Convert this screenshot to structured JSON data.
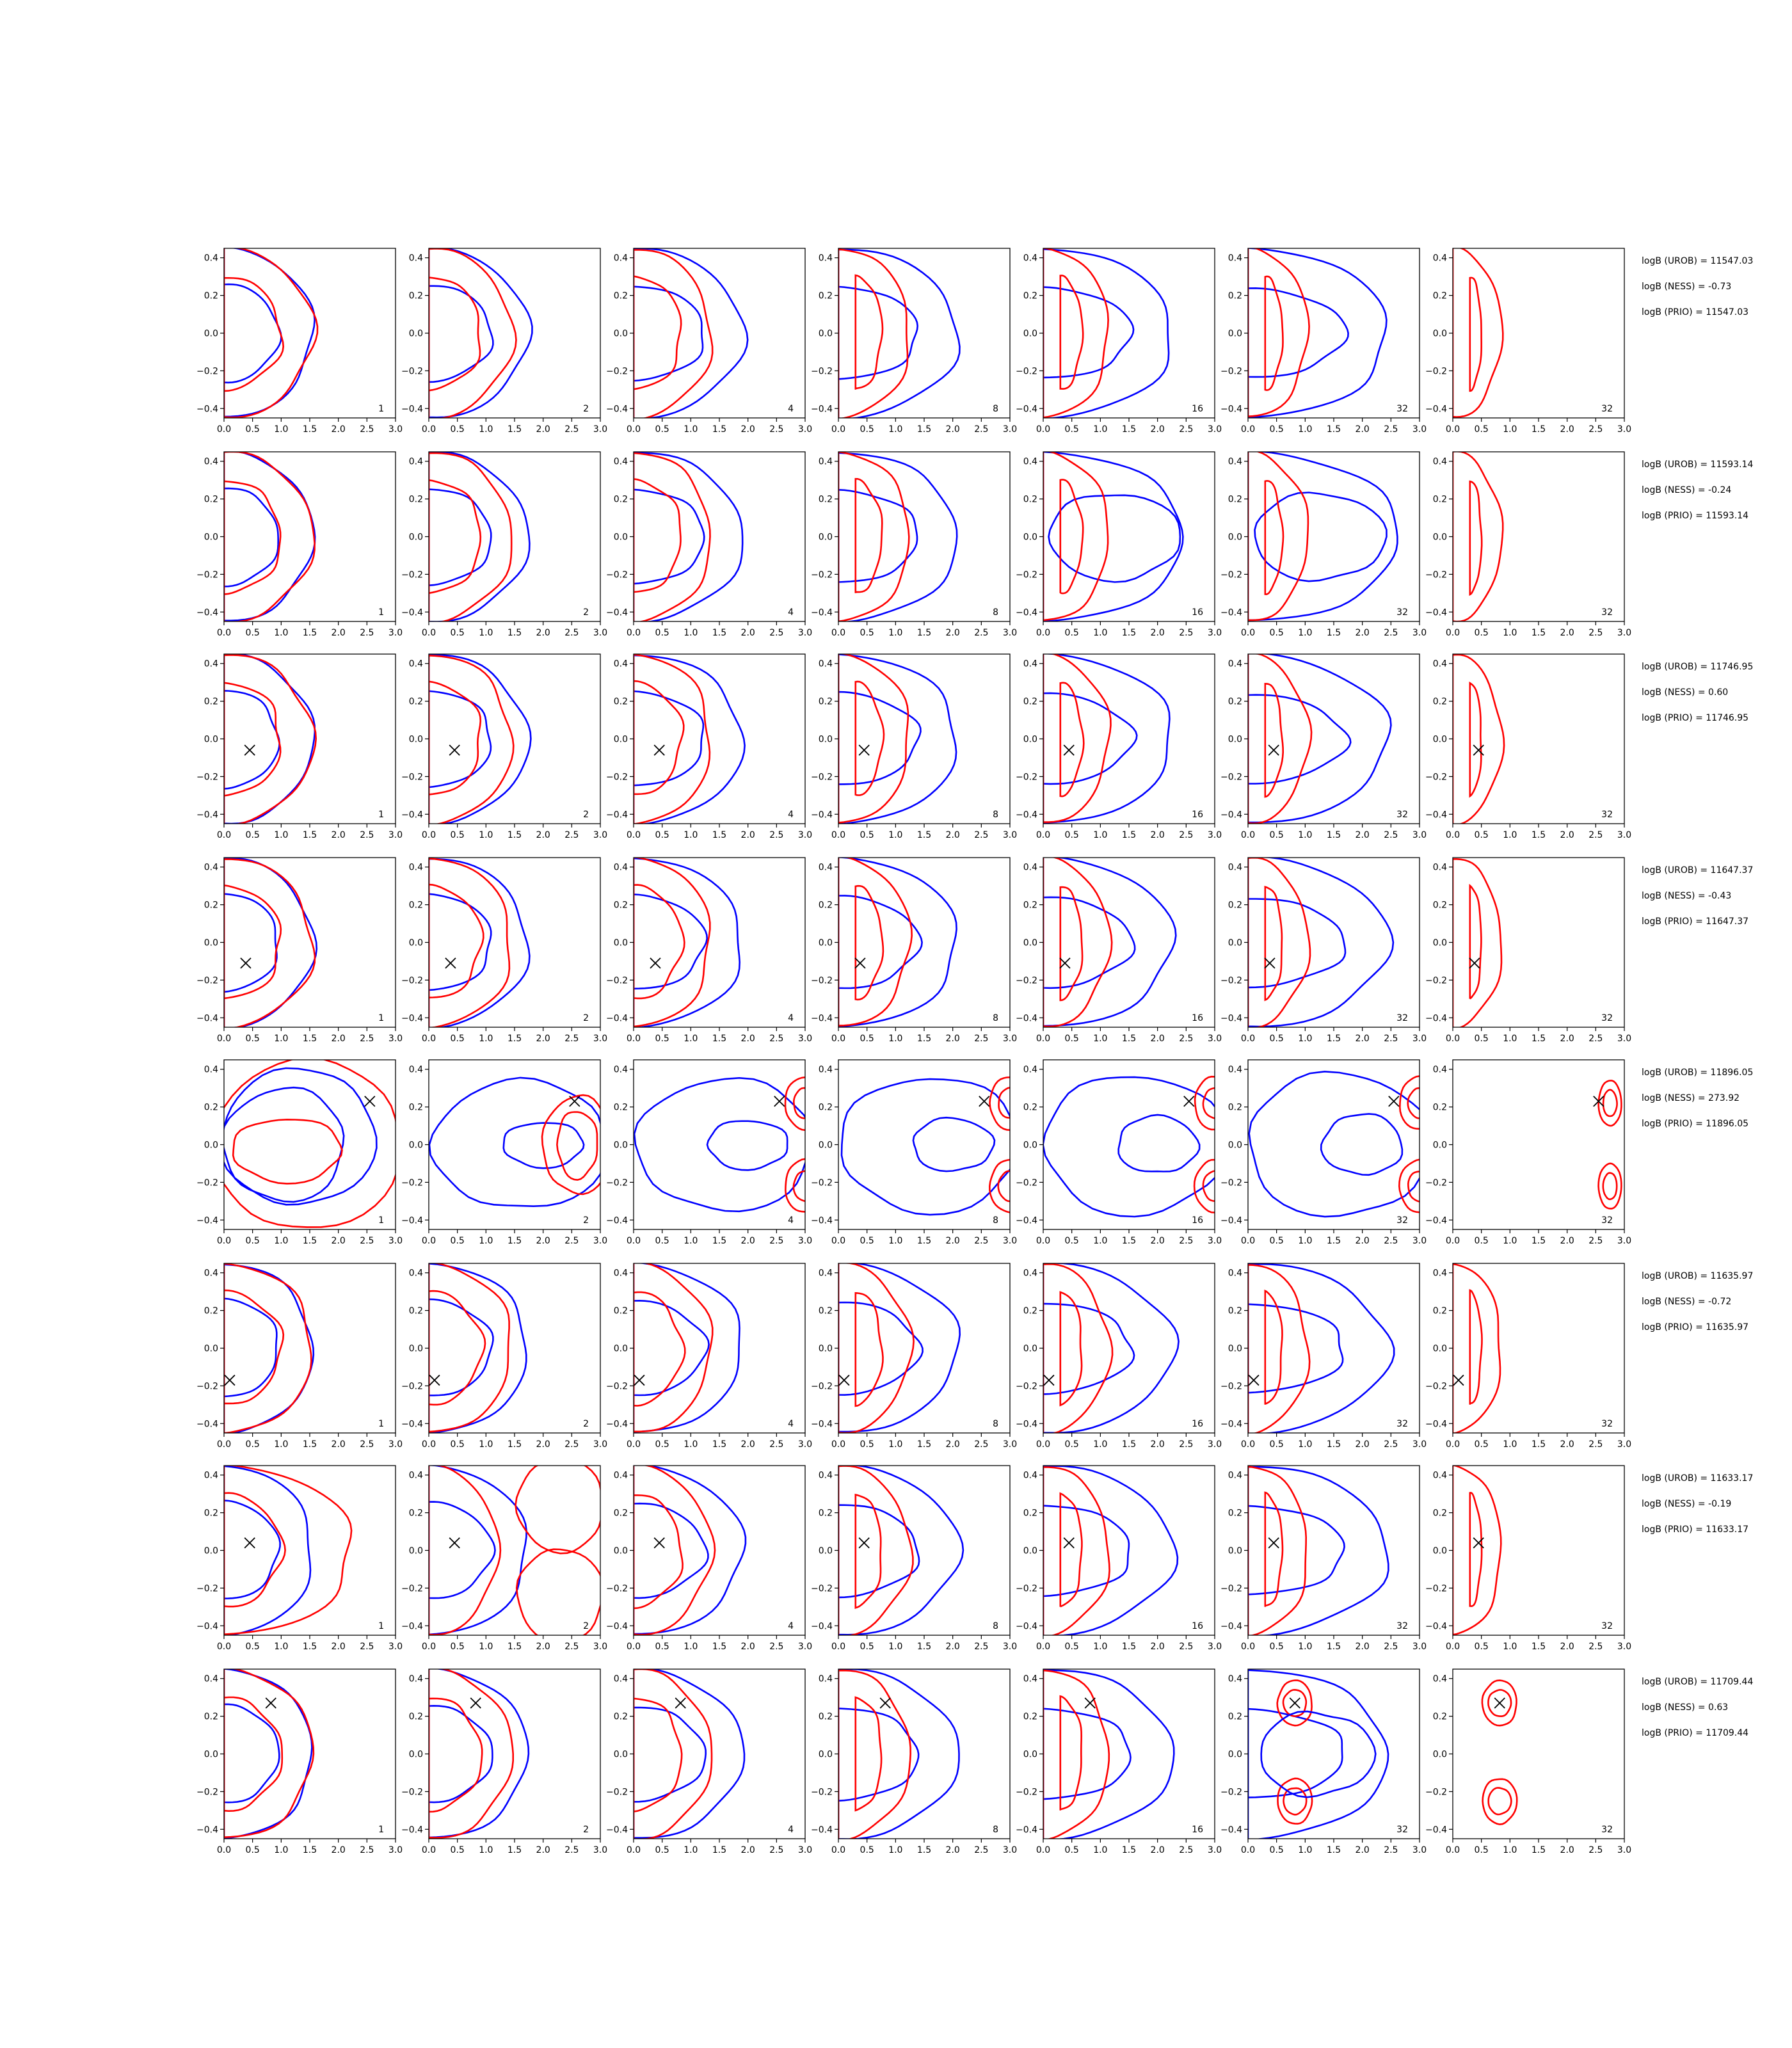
{
  "chart_data": {
    "type": "contour-grid",
    "xlim": [
      0.0,
      3.0
    ],
    "ylim": [
      -0.45,
      0.45
    ],
    "xticks": [
      "0.0",
      "0.5",
      "1.0",
      "1.5",
      "2.0",
      "2.5",
      "3.0"
    ],
    "yticks": [
      "0.4",
      "0.2",
      "0.0",
      "−0.2",
      "−0.4"
    ],
    "column_labels": [
      "1",
      "2",
      "4",
      "8",
      "16",
      "32",
      "32"
    ],
    "colors": {
      "blue": "#0000ff",
      "red": "#ff0000",
      "marker": "#000000"
    },
    "rows": [
      {
        "stats": [
          "logB (UROB) = 11547.03",
          "logB (NESS) = -0.73",
          "logB (PRIO) = 11547.03"
        ],
        "marker": null
      },
      {
        "stats": [
          "logB (UROB) = 11593.14",
          "logB (NESS) = -0.24",
          "logB (PRIO) = 11593.14"
        ],
        "marker": null
      },
      {
        "stats": [
          "logB (UROB) = 11746.95",
          "logB (NESS) = 0.60",
          "logB (PRIO) = 11746.95"
        ],
        "marker": [
          0.45,
          -0.06
        ]
      },
      {
        "stats": [
          "logB (UROB) = 11647.37",
          "logB (NESS) = -0.43",
          "logB (PRIO) = 11647.37"
        ],
        "marker": [
          0.38,
          -0.11
        ]
      },
      {
        "stats": [
          "logB (UROB) = 11896.05",
          "logB (NESS) = 273.92",
          "logB (PRIO) = 11896.05"
        ],
        "marker": [
          2.55,
          0.23
        ]
      },
      {
        "stats": [
          "logB (UROB) = 11635.97",
          "logB (NESS) = -0.72",
          "logB (PRIO) = 11635.97"
        ],
        "marker": [
          0.1,
          -0.17
        ]
      },
      {
        "stats": [
          "logB (UROB) = 11633.17",
          "logB (NESS) = -0.19",
          "logB (PRIO) = 11633.17"
        ],
        "marker": [
          0.45,
          0.04
        ]
      },
      {
        "stats": [
          "logB (UROB) = 11709.44",
          "logB (NESS) = 0.63",
          "logB (PRIO) = 11709.44"
        ],
        "marker": [
          0.82,
          0.27
        ]
      }
    ]
  }
}
